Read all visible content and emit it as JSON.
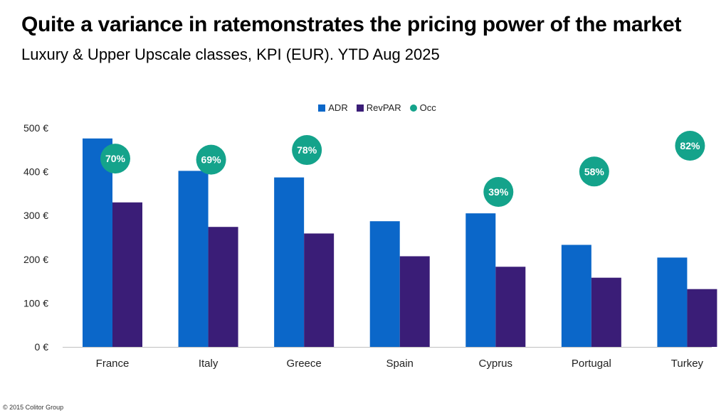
{
  "title": "Quite a variance in ratemonstrates the pricing power of the market",
  "subtitle": "Luxury & Upper Upscale classes, KPI (EUR). YTD Aug 2025",
  "footer": "© 2015 Colitor Group",
  "colors": {
    "adr": "#0b67c9",
    "revpar": "#3a1d77",
    "occ": "#14a38b",
    "axis": "#bfbfbf"
  },
  "chart_data": {
    "type": "bar",
    "title": "Quite a variance in ratemonstrates the pricing power of the market",
    "subtitle": "Luxury & Upper Upscale classes, KPI (EUR). YTD Aug 2025",
    "categories": [
      "France",
      "Italy",
      "Greece",
      "Spain",
      "Cyprus",
      "Portugal",
      "Turkey"
    ],
    "series": [
      {
        "name": "ADR",
        "values": [
          476,
          402,
          387,
          287,
          305,
          233,
          204
        ]
      },
      {
        "name": "RevPAR",
        "values": [
          330,
          274,
          259,
          207,
          183,
          158,
          132
        ]
      },
      {
        "name": "Occ",
        "values": [
          70,
          69,
          78,
          null,
          39,
          58,
          82
        ],
        "labels": [
          "70%",
          "69%",
          "78%",
          "",
          "39%",
          "58%",
          "82%"
        ]
      }
    ],
    "yticks": [
      "0 €",
      "100 €",
      "200 €",
      "300 €",
      "400 €",
      "500 €"
    ],
    "ylim": [
      0,
      500
    ],
    "legend_position": "top-center",
    "grid": false
  }
}
